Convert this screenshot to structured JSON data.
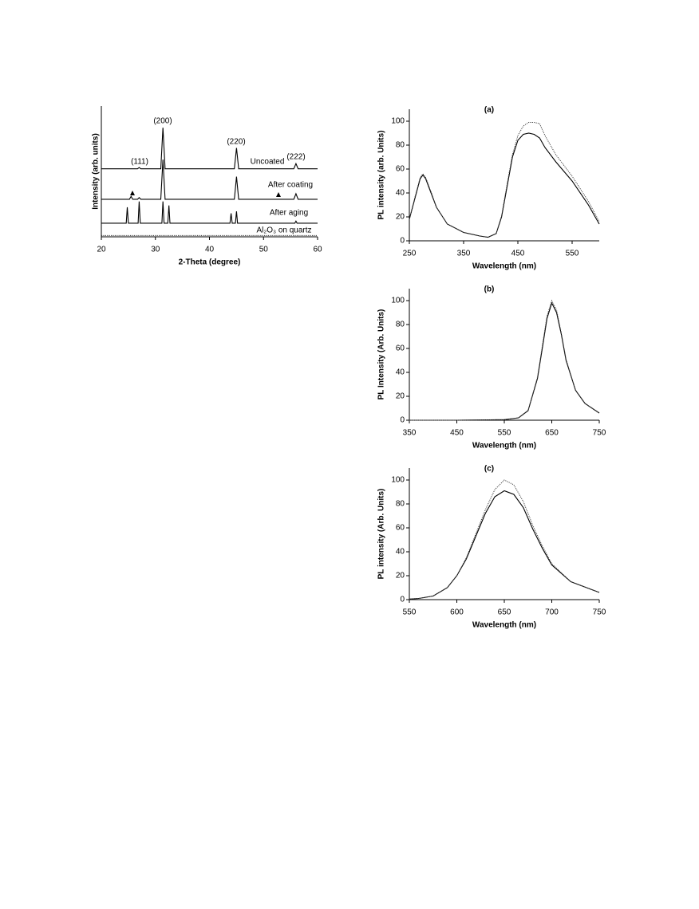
{
  "chart_data": [
    {
      "type": "line",
      "xlabel": "2-Theta (degree)",
      "ylabel": "Intensity (arb. units)",
      "xlim": [
        20,
        60
      ],
      "xticks": [
        20,
        30,
        40,
        50,
        60
      ],
      "ylim": [
        0,
        100
      ],
      "annotations": [
        "(111)",
        "(200)",
        "(220)",
        "(222)"
      ],
      "series": [
        {
          "name": "Uncoated",
          "color": "#000000",
          "style": "solid",
          "x": [
            20,
            26.7,
            27,
            27.3,
            31,
            31.4,
            31.8,
            44.6,
            45,
            45.4,
            55.6,
            56,
            56.4,
            60
          ],
          "values": [
            52,
            52,
            53,
            52,
            52,
            83.5,
            52,
            52,
            68,
            52,
            52,
            56,
            52,
            52
          ]
        },
        {
          "name": "After coating",
          "color": "#000000",
          "style": "solid",
          "x": [
            20,
            25.2,
            25.5,
            25.8,
            26.7,
            27,
            27.3,
            31,
            31.4,
            31.8,
            44.6,
            45,
            45.4,
            55.6,
            56,
            56.4,
            60
          ],
          "values": [
            28.7,
            28.7,
            31,
            28.7,
            28.7,
            30,
            28.7,
            28.7,
            59,
            28.7,
            28.7,
            46,
            28.7,
            28.7,
            33,
            28.7,
            28.7
          ]
        },
        {
          "name": "After aging",
          "color": "#000000",
          "style": "solid",
          "x": [
            20,
            24.6,
            24.8,
            25,
            26.8,
            27,
            27.2,
            31.2,
            31.4,
            31.6,
            32.3,
            32.5,
            32.7,
            43.8,
            44,
            44.2,
            44.8,
            45,
            45.2,
            55.8,
            56,
            56.2,
            60
          ],
          "values": [
            10.4,
            10.4,
            22.6,
            10.4,
            10.4,
            27,
            10.4,
            10.4,
            27,
            10.4,
            10.4,
            24,
            10.4,
            10.4,
            18,
            10.4,
            10.4,
            19.5,
            10.4,
            10.4,
            12,
            10.4,
            10.4
          ]
        },
        {
          "name": "Al₂O₃ on quartz",
          "color": "#333333",
          "style": "dotted",
          "x": [
            20,
            30,
            40,
            50,
            60
          ],
          "values": [
            1,
            1,
            1,
            1,
            1
          ]
        }
      ]
    },
    {
      "type": "line",
      "title": "(a)",
      "xlabel": "Wavelength (nm)",
      "ylabel": "PL intensity (arb. Units)",
      "xlim": [
        250,
        600
      ],
      "xticks": [
        250,
        350,
        450,
        550
      ],
      "ylim": [
        0,
        110
      ],
      "yticks": [
        0,
        20,
        40,
        60,
        80,
        100
      ],
      "series": [
        {
          "color": "#000000",
          "style": "solid",
          "x": [
            250,
            260,
            270,
            275,
            280,
            290,
            300,
            320,
            350,
            380,
            395,
            410,
            420,
            430,
            440,
            450,
            460,
            470,
            480,
            490,
            500,
            520,
            550,
            580,
            600
          ],
          "values": [
            18,
            35,
            52,
            55,
            52,
            40,
            28,
            14,
            7,
            4,
            3,
            6,
            20,
            45,
            70,
            84,
            89,
            90,
            89,
            86,
            78,
            66,
            50,
            30,
            14
          ]
        },
        {
          "color": "#444444",
          "style": "dotted",
          "x": [
            250,
            260,
            270,
            275,
            280,
            290,
            300,
            320,
            350,
            380,
            395,
            410,
            420,
            430,
            440,
            450,
            460,
            470,
            480,
            490,
            500,
            520,
            550,
            580,
            600
          ],
          "values": [
            18,
            36,
            53,
            56,
            53,
            41,
            28,
            14,
            7,
            4,
            3,
            6,
            21,
            47,
            72,
            88,
            96,
            99,
            99,
            98,
            88,
            72,
            54,
            33,
            16
          ]
        }
      ]
    },
    {
      "type": "line",
      "title": "(b)",
      "xlabel": "Wavelength (nm)",
      "ylabel": "PL Intensity (Arb. Units)",
      "xlim": [
        350,
        750
      ],
      "xticks": [
        350,
        450,
        550,
        650,
        750
      ],
      "ylim": [
        0,
        110
      ],
      "yticks": [
        0,
        20,
        40,
        60,
        80,
        100
      ],
      "series": [
        {
          "color": "#000000",
          "style": "solid",
          "x": [
            350,
            450,
            550,
            580,
            600,
            620,
            630,
            640,
            650,
            660,
            670,
            680,
            700,
            720,
            750
          ],
          "values": [
            0,
            0,
            0.5,
            2,
            8,
            35,
            60,
            85,
            98,
            90,
            72,
            50,
            25,
            14,
            6
          ]
        },
        {
          "color": "#444444",
          "style": "dotted",
          "x": [
            350,
            450,
            550,
            580,
            600,
            620,
            630,
            640,
            650,
            660,
            670,
            680,
            700,
            720,
            750
          ],
          "values": [
            0,
            0,
            0.5,
            2,
            8,
            36,
            62,
            87,
            100,
            92,
            73,
            51,
            25,
            14,
            6
          ]
        }
      ]
    },
    {
      "type": "line",
      "title": "(c)",
      "xlabel": "Wavelength (nm)",
      "ylabel": "PL intensity (Arb. Units)",
      "xlim": [
        550,
        750
      ],
      "xticks": [
        550,
        600,
        650,
        700,
        750
      ],
      "ylim": [
        0,
        110
      ],
      "yticks": [
        0,
        20,
        40,
        60,
        80,
        100
      ],
      "series": [
        {
          "color": "#000000",
          "style": "solid",
          "x": [
            550,
            560,
            575,
            590,
            600,
            610,
            620,
            630,
            640,
            650,
            660,
            670,
            680,
            690,
            700,
            720,
            750
          ],
          "values": [
            0.5,
            1,
            3,
            10,
            20,
            34,
            53,
            72,
            86,
            91,
            88,
            77,
            59,
            43,
            29,
            15,
            6
          ]
        },
        {
          "color": "#444444",
          "style": "dotted",
          "x": [
            550,
            560,
            575,
            590,
            600,
            610,
            620,
            630,
            640,
            650,
            660,
            670,
            680,
            690,
            700,
            720,
            750
          ],
          "values": [
            0.5,
            1,
            3,
            10,
            20,
            35,
            55,
            75,
            92,
            100,
            96,
            82,
            62,
            45,
            30,
            15,
            6
          ]
        }
      ]
    }
  ]
}
